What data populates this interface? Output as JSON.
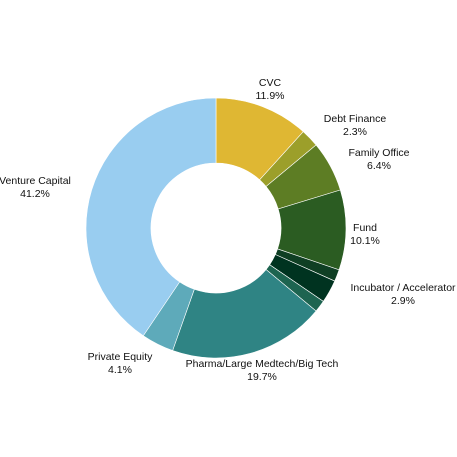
{
  "chart_data": {
    "type": "pie",
    "donut": true,
    "slices": [
      {
        "label": "CVC",
        "value_label": "11.9%",
        "value": 11.9,
        "color": "#dfb733"
      },
      {
        "label": "Debt Finance",
        "value_label": "2.3%",
        "value": 2.3,
        "color": "#9c9f2a"
      },
      {
        "label": "Family Office",
        "value_label": "6.4%",
        "value": 6.4,
        "color": "#5d7d24"
      },
      {
        "label": "Fund",
        "value_label": "10.1%",
        "value": 10.1,
        "color": "#2b5c22"
      },
      {
        "label": "",
        "value_label": "",
        "value": 1.5,
        "color": "#0f3f24"
      },
      {
        "label": "Incubator / Accelerator",
        "value_label": "2.9%",
        "value": 2.9,
        "color": "#003320"
      },
      {
        "label": "",
        "value_label": "",
        "value": 1.5,
        "color": "#1d6450"
      },
      {
        "label": "Pharma/Large Medtech/Big Tech",
        "value_label": "19.7%",
        "value": 19.7,
        "color": "#2f8484"
      },
      {
        "label": "Private Equity",
        "value_label": "4.1%",
        "value": 4.1,
        "color": "#5eaaba"
      },
      {
        "label": "Venture Capital",
        "value_label": "41.2%",
        "value": 41.2,
        "color": "#99cdf0"
      }
    ]
  }
}
